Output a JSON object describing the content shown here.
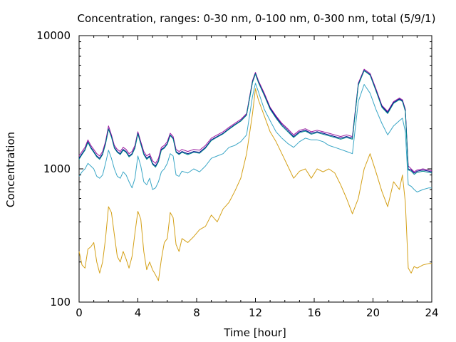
{
  "chart_data": {
    "type": "line",
    "title": "Concentration, ranges: 0-30 nm, 0-100 nm, 0-300 nm, total (5/9/1)",
    "xlabel": "Time [hour]",
    "ylabel": "Concentration",
    "xlim": [
      0,
      24
    ],
    "ylim": [
      100,
      10000
    ],
    "yscale": "log",
    "grid": false,
    "legend": "none",
    "xticks": [
      0,
      4,
      8,
      12,
      16,
      20,
      24
    ],
    "xtick_labels": [
      "0",
      "4",
      "8",
      "12",
      "16",
      "20",
      "24"
    ],
    "yticks": [
      100,
      1000,
      10000
    ],
    "ytick_labels": [
      "100",
      "1000",
      "10000"
    ],
    "series": [
      {
        "color": "#d4a017",
        "x": [
          0,
          0.2,
          0.4,
          0.6,
          0.8,
          1.0,
          1.2,
          1.4,
          1.6,
          1.8,
          2.0,
          2.2,
          2.4,
          2.6,
          2.8,
          3.0,
          3.2,
          3.4,
          3.6,
          3.8,
          4.0,
          4.2,
          4.4,
          4.6,
          4.8,
          5.0,
          5.2,
          5.4,
          5.6,
          5.8,
          6.0,
          6.2,
          6.4,
          6.6,
          6.8,
          7.0,
          7.4,
          7.8,
          8.2,
          8.6,
          9.0,
          9.4,
          9.8,
          10.2,
          10.6,
          11.0,
          11.4,
          11.8,
          12.0,
          12.2,
          12.6,
          13.0,
          13.4,
          13.8,
          14.2,
          14.6,
          15.0,
          15.4,
          15.8,
          16.2,
          16.6,
          17.0,
          17.4,
          17.8,
          18.2,
          18.6,
          19.0,
          19.4,
          19.8,
          20.2,
          20.6,
          21.0,
          21.4,
          21.8,
          22.0,
          22.2,
          22.4,
          22.6,
          22.8,
          23.0,
          23.4,
          23.8,
          24.0
        ],
        "y": [
          240,
          190,
          180,
          250,
          260,
          280,
          200,
          165,
          200,
          300,
          520,
          470,
          320,
          220,
          200,
          240,
          210,
          180,
          220,
          330,
          480,
          420,
          240,
          175,
          200,
          175,
          160,
          145,
          210,
          280,
          300,
          470,
          430,
          270,
          240,
          300,
          280,
          310,
          350,
          370,
          450,
          400,
          500,
          560,
          680,
          850,
          1300,
          2600,
          4000,
          3300,
          2500,
          1900,
          1600,
          1300,
          1050,
          850,
          960,
          1000,
          850,
          1000,
          950,
          1000,
          930,
          760,
          600,
          460,
          600,
          1000,
          1300,
          950,
          680,
          520,
          800,
          700,
          900,
          560,
          180,
          165,
          185,
          180,
          190,
          195,
          195
        ]
      },
      {
        "color": "#3aa6c6",
        "x": [
          0,
          0.2,
          0.4,
          0.6,
          0.8,
          1.0,
          1.2,
          1.4,
          1.6,
          1.8,
          2.0,
          2.2,
          2.4,
          2.6,
          2.8,
          3.0,
          3.2,
          3.4,
          3.6,
          3.8,
          4.0,
          4.2,
          4.4,
          4.6,
          4.8,
          5.0,
          5.2,
          5.4,
          5.6,
          5.8,
          6.0,
          6.2,
          6.4,
          6.6,
          6.8,
          7.0,
          7.4,
          7.8,
          8.2,
          8.6,
          9.0,
          9.4,
          9.8,
          10.2,
          10.6,
          11.0,
          11.4,
          11.8,
          12.0,
          12.2,
          12.6,
          13.0,
          13.4,
          13.8,
          14.2,
          14.6,
          15.0,
          15.4,
          15.8,
          16.2,
          16.6,
          17.0,
          17.4,
          17.8,
          18.2,
          18.6,
          19.0,
          19.4,
          19.8,
          20.2,
          20.6,
          21.0,
          21.4,
          21.8,
          22.0,
          22.2,
          22.4,
          22.6,
          22.8,
          23.0,
          23.4,
          23.8,
          24.0
        ],
        "y": [
          880,
          950,
          1000,
          1100,
          1050,
          1000,
          880,
          850,
          900,
          1100,
          1380,
          1200,
          1000,
          880,
          850,
          950,
          900,
          800,
          720,
          850,
          1250,
          1050,
          800,
          760,
          850,
          700,
          720,
          800,
          950,
          1000,
          1100,
          1300,
          1250,
          900,
          880,
          960,
          930,
          1000,
          950,
          1050,
          1200,
          1250,
          1300,
          1450,
          1500,
          1600,
          1800,
          3500,
          4400,
          3800,
          2800,
          2300,
          1900,
          1700,
          1550,
          1450,
          1600,
          1700,
          1650,
          1650,
          1600,
          1500,
          1450,
          1400,
          1350,
          1300,
          3200,
          4300,
          3700,
          2800,
          2200,
          1800,
          2100,
          2300,
          2400,
          1900,
          760,
          740,
          700,
          670,
          700,
          720,
          720
        ]
      },
      {
        "color": "#9a1aa0",
        "x": [
          0,
          0.2,
          0.4,
          0.6,
          0.8,
          1.0,
          1.2,
          1.4,
          1.6,
          1.8,
          2.0,
          2.2,
          2.4,
          2.6,
          2.8,
          3.0,
          3.2,
          3.4,
          3.6,
          3.8,
          4.0,
          4.2,
          4.4,
          4.6,
          4.8,
          5.0,
          5.2,
          5.4,
          5.6,
          5.8,
          6.0,
          6.2,
          6.4,
          6.6,
          6.8,
          7.0,
          7.4,
          7.8,
          8.2,
          8.6,
          9.0,
          9.4,
          9.8,
          10.2,
          10.6,
          11.0,
          11.4,
          11.8,
          12.0,
          12.2,
          12.6,
          13.0,
          13.4,
          13.8,
          14.2,
          14.6,
          15.0,
          15.4,
          15.8,
          16.2,
          16.6,
          17.0,
          17.4,
          17.8,
          18.2,
          18.6,
          19.0,
          19.4,
          19.8,
          20.2,
          20.6,
          21.0,
          21.4,
          21.8,
          22.0,
          22.2,
          22.4,
          22.6,
          22.8,
          23.0,
          23.4,
          23.8,
          24.0
        ],
        "y": [
          1250,
          1350,
          1450,
          1650,
          1500,
          1400,
          1300,
          1250,
          1350,
          1600,
          2100,
          1800,
          1500,
          1400,
          1350,
          1450,
          1400,
          1300,
          1350,
          1500,
          1900,
          1600,
          1350,
          1250,
          1300,
          1150,
          1100,
          1200,
          1450,
          1500,
          1600,
          1850,
          1750,
          1400,
          1350,
          1400,
          1350,
          1400,
          1380,
          1500,
          1700,
          1800,
          1900,
          2050,
          2200,
          2350,
          2600,
          4600,
          5300,
          4600,
          3700,
          2900,
          2500,
          2200,
          2000,
          1800,
          1950,
          2000,
          1900,
          1950,
          1900,
          1850,
          1800,
          1750,
          1800,
          1750,
          4400,
          5600,
          5200,
          4000,
          3000,
          2700,
          3200,
          3400,
          3300,
          2800,
          1050,
          1000,
          950,
          980,
          1000,
          980,
          970
        ]
      },
      {
        "color": "#00008b",
        "x": [
          0,
          0.2,
          0.4,
          0.6,
          0.8,
          1.0,
          1.2,
          1.4,
          1.6,
          1.8,
          2.0,
          2.2,
          2.4,
          2.6,
          2.8,
          3.0,
          3.2,
          3.4,
          3.6,
          3.8,
          4.0,
          4.2,
          4.4,
          4.6,
          4.8,
          5.0,
          5.2,
          5.4,
          5.6,
          5.8,
          6.0,
          6.2,
          6.4,
          6.6,
          6.8,
          7.0,
          7.4,
          7.8,
          8.2,
          8.6,
          9.0,
          9.4,
          9.8,
          10.2,
          10.6,
          11.0,
          11.4,
          11.8,
          12.0,
          12.2,
          12.6,
          13.0,
          13.4,
          13.8,
          14.2,
          14.6,
          15.0,
          15.4,
          15.8,
          16.2,
          16.6,
          17.0,
          17.4,
          17.8,
          18.2,
          18.6,
          19.0,
          19.4,
          19.8,
          20.2,
          20.6,
          21.0,
          21.4,
          21.8,
          22.0,
          22.2,
          22.4,
          22.6,
          22.8,
          23.0,
          23.4,
          23.8,
          24.0
        ],
        "y": [
          1200,
          1300,
          1400,
          1600,
          1450,
          1350,
          1250,
          1200,
          1300,
          1550,
          2000,
          1750,
          1450,
          1350,
          1300,
          1400,
          1350,
          1250,
          1300,
          1450,
          1850,
          1550,
          1300,
          1200,
          1250,
          1100,
          1050,
          1150,
          1400,
          1450,
          1550,
          1800,
          1700,
          1350,
          1300,
          1350,
          1300,
          1350,
          1330,
          1450,
          1650,
          1750,
          1850,
          2000,
          2150,
          2300,
          2550,
          4500,
          5200,
          4500,
          3600,
          2850,
          2450,
          2150,
          1950,
          1750,
          1900,
          1950,
          1850,
          1900,
          1850,
          1800,
          1750,
          1700,
          1750,
          1700,
          4300,
          5500,
          5100,
          3900,
          2950,
          2650,
          3150,
          3350,
          3250,
          2750,
          1000,
          980,
          930,
          960,
          980,
          960,
          950
        ]
      },
      {
        "color": "#008b8b",
        "x": [
          0,
          0.2,
          0.4,
          0.6,
          0.8,
          1.0,
          1.2,
          1.4,
          1.6,
          1.8,
          2.0,
          2.2,
          2.4,
          2.6,
          2.8,
          3.0,
          3.2,
          3.4,
          3.6,
          3.8,
          4.0,
          4.2,
          4.4,
          4.6,
          4.8,
          5.0,
          5.2,
          5.4,
          5.6,
          5.8,
          6.0,
          6.2,
          6.4,
          6.6,
          6.8,
          7.0,
          7.4,
          7.8,
          8.2,
          8.6,
          9.0,
          9.4,
          9.8,
          10.2,
          10.6,
          11.0,
          11.4,
          11.8,
          12.0,
          12.2,
          12.6,
          13.0,
          13.4,
          13.8,
          14.2,
          14.6,
          15.0,
          15.4,
          15.8,
          16.2,
          16.6,
          17.0,
          17.4,
          17.8,
          18.2,
          18.6,
          19.0,
          19.4,
          19.8,
          20.2,
          20.6,
          21.0,
          21.4,
          21.8,
          22.0,
          22.2,
          22.4,
          22.6,
          22.8,
          23.0,
          23.4,
          23.8,
          24.0
        ],
        "y": [
          1180,
          1280,
          1380,
          1580,
          1430,
          1330,
          1230,
          1180,
          1280,
          1530,
          1980,
          1730,
          1430,
          1330,
          1280,
          1380,
          1330,
          1230,
          1280,
          1430,
          1830,
          1530,
          1280,
          1180,
          1230,
          1080,
          1030,
          1130,
          1380,
          1430,
          1530,
          1780,
          1680,
          1330,
          1280,
          1330,
          1280,
          1330,
          1310,
          1430,
          1630,
          1730,
          1830,
          1980,
          2130,
          2280,
          2530,
          4450,
          5150,
          4450,
          3550,
          2800,
          2400,
          2100,
          1900,
          1720,
          1870,
          1920,
          1820,
          1870,
          1820,
          1770,
          1720,
          1670,
          1720,
          1670,
          4250,
          5450,
          5050,
          3850,
          2900,
          2600,
          3100,
          3300,
          3200,
          2700,
          980,
          960,
          910,
          940,
          960,
          940,
          930
        ]
      }
    ]
  }
}
